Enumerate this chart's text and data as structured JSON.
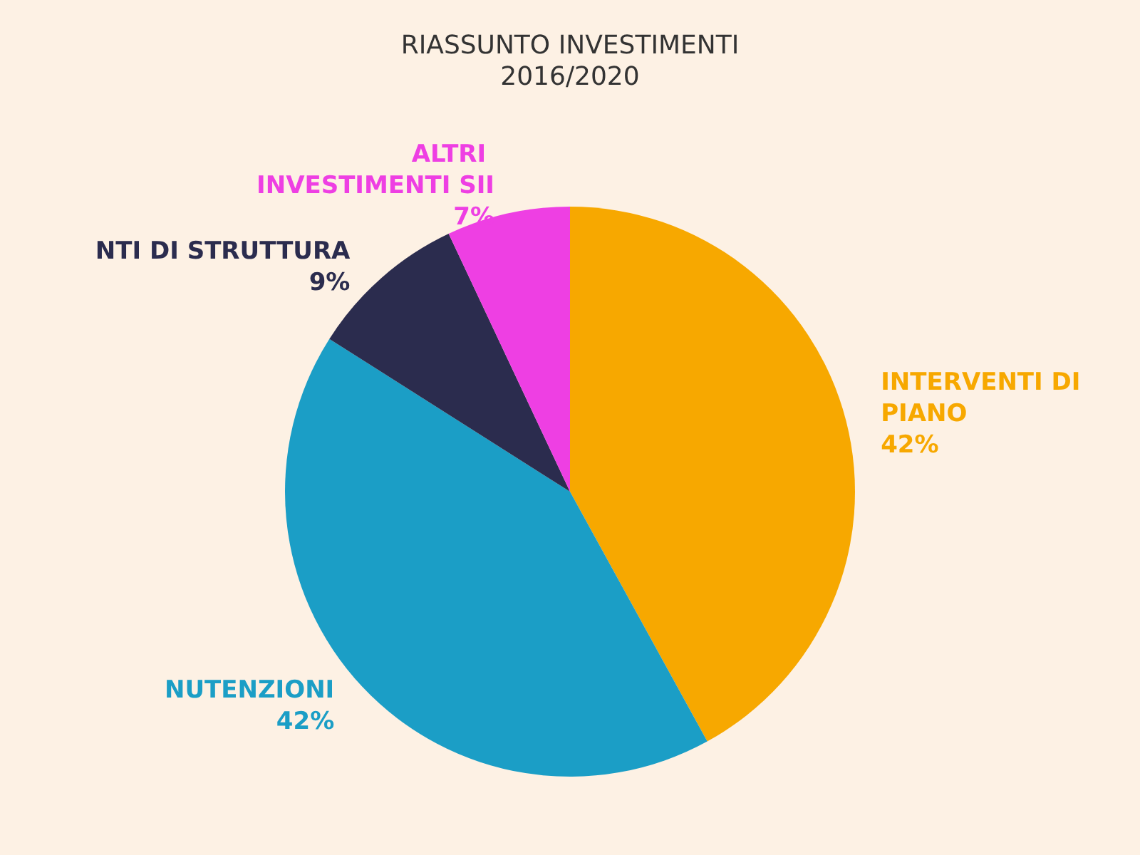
{
  "chart_data": {
    "type": "pie",
    "title": "RIASSUNTO INVESTIMENTI",
    "subtitle": "2016/2020",
    "categories": [
      "INTERVENTI DI PIANO",
      "NUTENZIONI",
      "NTI DI STRUTTURA",
      "ALTRI INVESTIMENTI SII"
    ],
    "values": [
      42,
      42,
      9,
      7
    ],
    "colors": [
      "#f7a800",
      "#1b9ec6",
      "#2b2c4e",
      "#ee3fe3"
    ],
    "value_labels": [
      "42%",
      "42%",
      "9%",
      "7%"
    ],
    "legend": false
  }
}
